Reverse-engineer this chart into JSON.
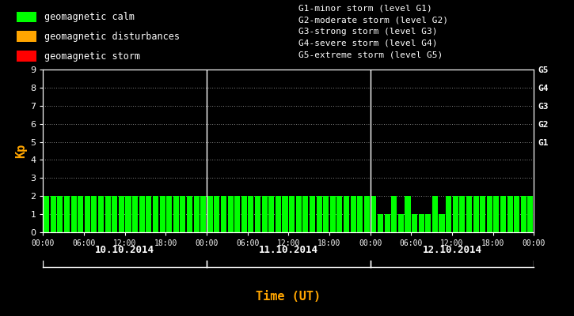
{
  "background_color": "#000000",
  "bar_color_calm": "#00ff00",
  "bar_color_disturbance": "#ffa500",
  "bar_color_storm": "#ff0000",
  "ylabel": "Kp",
  "xlabel": "Time (UT)",
  "ylabel_color": "#ffa500",
  "xlabel_color": "#ffa500",
  "text_color": "#ffffff",
  "date_labels": [
    "10.10.2014",
    "11.10.2014",
    "12.10.2014"
  ],
  "ylim": [
    0,
    9
  ],
  "yticks": [
    0,
    1,
    2,
    3,
    4,
    5,
    6,
    7,
    8,
    9
  ],
  "g_labels": [
    "G1",
    "G2",
    "G3",
    "G4",
    "G5"
  ],
  "g_values": [
    5,
    6,
    7,
    8,
    9
  ],
  "legend_items": [
    {
      "label": "geomagnetic calm",
      "color": "#00ff00"
    },
    {
      "label": "geomagnetic disturbances",
      "color": "#ffa500"
    },
    {
      "label": "geomagnetic storm",
      "color": "#ff0000"
    }
  ],
  "storm_legend_lines": [
    "G1-minor storm (level G1)",
    "G2-moderate storm (level G2)",
    "G3-strong storm (level G3)",
    "G4-severe storm (level G4)",
    "G5-extreme storm (level G5)"
  ],
  "kp_values_day1": [
    2,
    2,
    2,
    2,
    2,
    2,
    2,
    2,
    2,
    2,
    2,
    2,
    2,
    2,
    2,
    2,
    2,
    2,
    2,
    2,
    2,
    2,
    2,
    2
  ],
  "kp_values_day2": [
    2,
    2,
    2,
    2,
    2,
    2,
    2,
    2,
    2,
    2,
    2,
    2,
    2,
    2,
    2,
    2,
    2,
    2,
    2,
    2,
    2,
    2,
    2,
    2
  ],
  "kp_values_day3": [
    2,
    1,
    1,
    2,
    1,
    2,
    1,
    1,
    1,
    2,
    1,
    2,
    2,
    2,
    2,
    2,
    2,
    2,
    2,
    2,
    2,
    2,
    2,
    2
  ],
  "calm_threshold": 4,
  "disturbance_threshold": 5,
  "xtick_labels": [
    "00:00",
    "06:00",
    "12:00",
    "18:00",
    "00:00",
    "06:00",
    "12:00",
    "18:00",
    "00:00",
    "06:00",
    "12:00",
    "18:00",
    "00:00"
  ],
  "xtick_positions": [
    0,
    6,
    12,
    18,
    24,
    30,
    36,
    42,
    48,
    54,
    60,
    66,
    72
  ]
}
